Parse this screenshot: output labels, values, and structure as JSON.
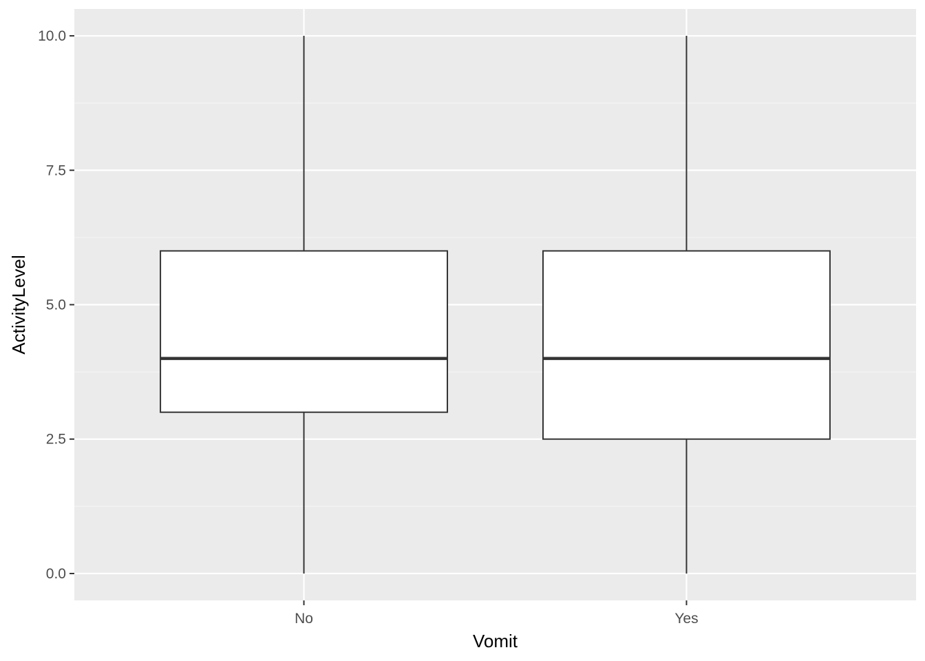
{
  "chart_data": {
    "type": "boxplot",
    "title": "",
    "xlabel": "Vomit",
    "ylabel": "ActivityLevel",
    "categories": [
      "No",
      "Yes"
    ],
    "boxes": [
      {
        "category": "No",
        "min": 0,
        "q1": 3.0,
        "median": 4,
        "q3": 6,
        "max": 10
      },
      {
        "category": "Yes",
        "min": 0,
        "q1": 2.5,
        "median": 4,
        "q3": 6,
        "max": 10
      }
    ],
    "y_ticks": [
      0.0,
      2.5,
      5.0,
      7.5,
      10.0
    ],
    "y_tick_labels": [
      "0.0",
      "2.5",
      "5.0",
      "7.5",
      "10.0"
    ],
    "ylim": [
      -0.5,
      10.5
    ],
    "grid": true,
    "legend": "none",
    "colors": {
      "panel_background": "#ebebeb",
      "grid_major": "#ffffff",
      "grid_minor": "#f5f5f5",
      "box_fill": "#ffffff",
      "box_line": "#333333",
      "tick_mark": "#333333"
    }
  }
}
